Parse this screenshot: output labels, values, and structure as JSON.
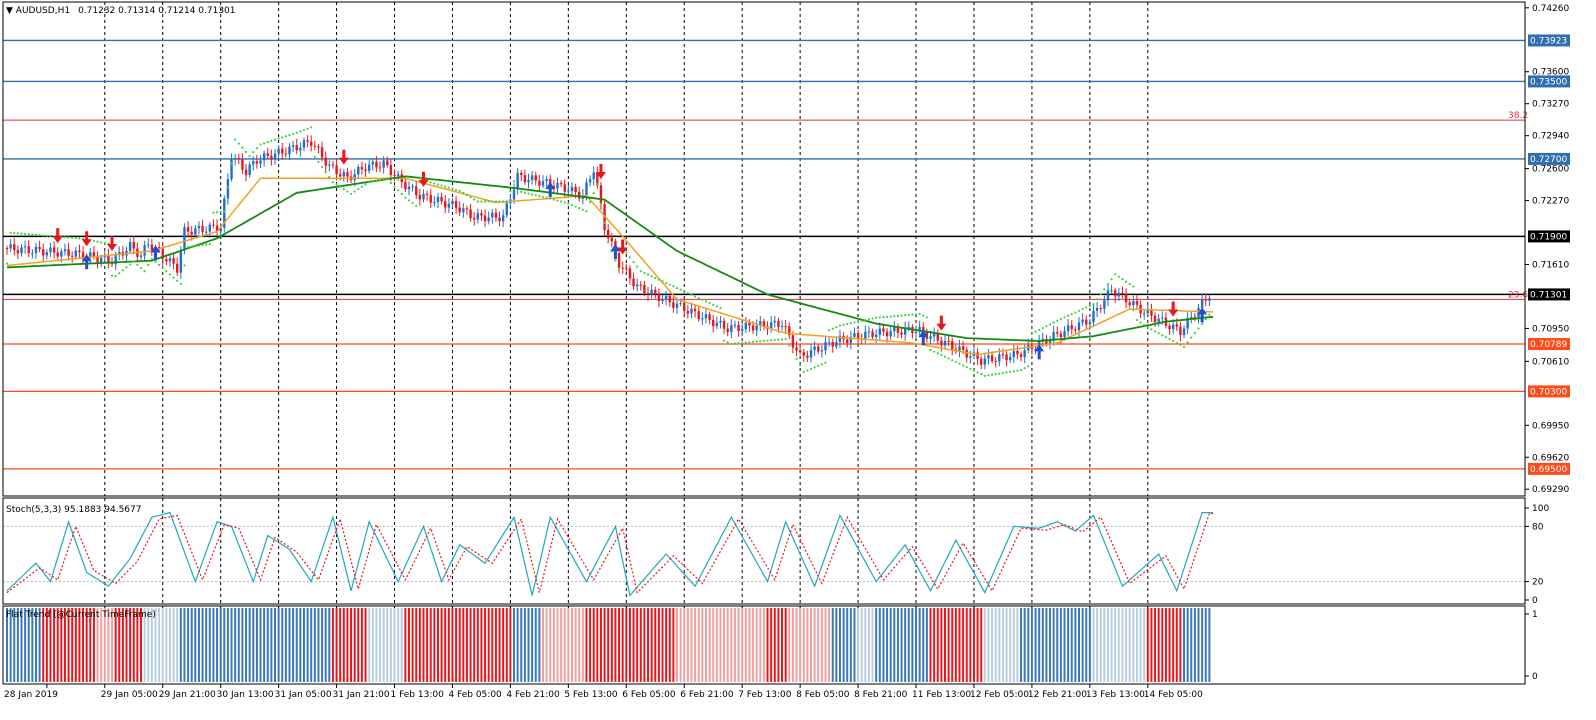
{
  "header": {
    "symbol_tf": "AUDUSD,H1",
    "ohlc": "0.71232 0.71314 0.71214 0.71301"
  },
  "price_axis": {
    "ticks": [
      "0.74260",
      "0.73600",
      "0.73270",
      "0.72940",
      "0.72600",
      "0.72270",
      "0.71610",
      "0.70950",
      "0.70610",
      "0.69950",
      "0.69620",
      "0.69290"
    ],
    "range": [
      0.6922,
      0.7432
    ]
  },
  "levels": [
    {
      "price": 0.73923,
      "label": "0.73923",
      "color": "#2f6fb0"
    },
    {
      "price": 0.735,
      "label": "0.73500",
      "color": "#2f6fb0"
    },
    {
      "price": 0.727,
      "label": "0.72700",
      "color": "#2f6fb0"
    },
    {
      "price": 0.719,
      "label": "0.71900",
      "color": "#000000"
    },
    {
      "price": 0.71301,
      "label": "0.71301",
      "color": "#000000"
    },
    {
      "price": 0.70789,
      "label": "0.70789",
      "color": "#ff4a1a"
    },
    {
      "price": 0.703,
      "label": "0.70300",
      "color": "#ff4a1a"
    },
    {
      "price": 0.695,
      "label": "0.69500",
      "color": "#ff4a1a"
    }
  ],
  "fib": [
    {
      "price": 0.731,
      "label": "38.2"
    },
    {
      "price": 0.7125,
      "label": "23.6"
    }
  ],
  "stoch": {
    "label": "Stoch(5,3,3) 95.1883 94.5677",
    "ticks": [
      "100",
      "80",
      "20",
      "0"
    ]
  },
  "flat_trend": {
    "label": "Flat Trend (@Current TimeFrame)",
    "ticks": [
      "1",
      "0"
    ]
  },
  "time_axis": {
    "labels": [
      "28 Jan 2019",
      "29 Jan 05:00",
      "29 Jan 21:00",
      "30 Jan 13:00",
      "31 Jan 05:00",
      "31 Jan 21:00",
      "1 Feb 13:00",
      "4 Feb 05:00",
      "4 Feb 21:00",
      "5 Feb 13:00",
      "6 Feb 05:00",
      "6 Feb 21:00",
      "7 Feb 13:00",
      "8 Feb 05:00",
      "8 Feb 21:00",
      "11 Feb 13:00",
      "12 Feb 05:00",
      "12 Feb 21:00",
      "13 Feb 13:00",
      "14 Feb 05:00"
    ]
  },
  "chart_data": {
    "type": "candlestick",
    "symbol": "AUDUSD",
    "timeframe": "H1",
    "price_path": [
      [
        0,
        0.7178
      ],
      [
        20,
        0.7172
      ],
      [
        30,
        0.7165
      ],
      [
        35,
        0.718
      ],
      [
        38,
        0.717
      ],
      [
        40,
        0.7183
      ],
      [
        48,
        0.7157
      ],
      [
        50,
        0.7195
      ],
      [
        60,
        0.72
      ],
      [
        63,
        0.7274
      ],
      [
        67,
        0.7257
      ],
      [
        70,
        0.7269
      ],
      [
        80,
        0.7281
      ],
      [
        85,
        0.7288
      ],
      [
        90,
        0.7262
      ],
      [
        95,
        0.725
      ],
      [
        100,
        0.7262
      ],
      [
        105,
        0.7265
      ],
      [
        110,
        0.7246
      ],
      [
        115,
        0.7232
      ],
      [
        125,
        0.7221
      ],
      [
        130,
        0.721
      ],
      [
        138,
        0.721
      ],
      [
        142,
        0.7252
      ],
      [
        150,
        0.7245
      ],
      [
        155,
        0.724
      ],
      [
        160,
        0.7232
      ],
      [
        163,
        0.726
      ],
      [
        166,
        0.72
      ],
      [
        170,
        0.7162
      ],
      [
        175,
        0.7138
      ],
      [
        190,
        0.7112
      ],
      [
        200,
        0.7095
      ],
      [
        215,
        0.71
      ],
      [
        220,
        0.7066
      ],
      [
        230,
        0.7082
      ],
      [
        240,
        0.709
      ],
      [
        252,
        0.7094
      ],
      [
        260,
        0.708
      ],
      [
        270,
        0.7062
      ],
      [
        280,
        0.7068
      ],
      [
        290,
        0.7087
      ],
      [
        300,
        0.7104
      ],
      [
        306,
        0.7135
      ],
      [
        315,
        0.7112
      ],
      [
        320,
        0.7102
      ],
      [
        325,
        0.7092
      ],
      [
        333,
        0.713
      ]
    ],
    "ema_fast_path": [
      [
        0,
        0.716
      ],
      [
        40,
        0.7175
      ],
      [
        58,
        0.7195
      ],
      [
        70,
        0.725
      ],
      [
        88,
        0.725
      ],
      [
        110,
        0.725
      ],
      [
        135,
        0.7225
      ],
      [
        160,
        0.7232
      ],
      [
        170,
        0.719
      ],
      [
        185,
        0.7125
      ],
      [
        215,
        0.709
      ],
      [
        250,
        0.708
      ],
      [
        268,
        0.7068
      ],
      [
        290,
        0.708
      ],
      [
        310,
        0.7115
      ],
      [
        333,
        0.7112
      ]
    ],
    "ema_slow_path": [
      [
        0,
        0.7158
      ],
      [
        40,
        0.7165
      ],
      [
        58,
        0.7188
      ],
      [
        80,
        0.7235
      ],
      [
        110,
        0.7252
      ],
      [
        140,
        0.724
      ],
      [
        165,
        0.7228
      ],
      [
        185,
        0.7175
      ],
      [
        210,
        0.713
      ],
      [
        240,
        0.71
      ],
      [
        265,
        0.7085
      ],
      [
        285,
        0.7082
      ],
      [
        300,
        0.7087
      ],
      [
        320,
        0.7102
      ],
      [
        333,
        0.7107
      ]
    ],
    "stoch_main_path": [
      [
        0,
        10
      ],
      [
        8,
        40
      ],
      [
        12,
        20
      ],
      [
        17,
        85
      ],
      [
        22,
        30
      ],
      [
        28,
        15
      ],
      [
        34,
        45
      ],
      [
        40,
        90
      ],
      [
        45,
        95
      ],
      [
        52,
        20
      ],
      [
        58,
        85
      ],
      [
        62,
        80
      ],
      [
        68,
        20
      ],
      [
        72,
        70
      ],
      [
        78,
        55
      ],
      [
        84,
        20
      ],
      [
        90,
        90
      ],
      [
        95,
        10
      ],
      [
        100,
        85
      ],
      [
        108,
        20
      ],
      [
        115,
        80
      ],
      [
        120,
        20
      ],
      [
        125,
        60
      ],
      [
        132,
        40
      ],
      [
        140,
        90
      ],
      [
        145,
        5
      ],
      [
        150,
        90
      ],
      [
        160,
        20
      ],
      [
        168,
        80
      ],
      [
        172,
        5
      ],
      [
        182,
        50
      ],
      [
        190,
        15
      ],
      [
        200,
        90
      ],
      [
        210,
        20
      ],
      [
        215,
        85
      ],
      [
        223,
        15
      ],
      [
        230,
        92
      ],
      [
        240,
        20
      ],
      [
        248,
        60
      ],
      [
        255,
        10
      ],
      [
        262,
        65
      ],
      [
        270,
        8
      ],
      [
        278,
        80
      ],
      [
        285,
        78
      ],
      [
        290,
        85
      ],
      [
        295,
        75
      ],
      [
        300,
        92
      ],
      [
        308,
        15
      ],
      [
        318,
        50
      ],
      [
        323,
        10
      ],
      [
        330,
        95
      ],
      [
        333,
        95
      ]
    ],
    "stoch_signal_path": [
      [
        0,
        8
      ],
      [
        9,
        35
      ],
      [
        14,
        22
      ],
      [
        19,
        80
      ],
      [
        24,
        32
      ],
      [
        30,
        18
      ],
      [
        36,
        42
      ],
      [
        42,
        88
      ],
      [
        47,
        92
      ],
      [
        54,
        22
      ],
      [
        60,
        82
      ],
      [
        64,
        78
      ],
      [
        70,
        22
      ],
      [
        74,
        68
      ],
      [
        80,
        52
      ],
      [
        86,
        22
      ],
      [
        92,
        88
      ],
      [
        97,
        12
      ],
      [
        102,
        82
      ],
      [
        110,
        22
      ],
      [
        117,
        78
      ],
      [
        122,
        22
      ],
      [
        127,
        58
      ],
      [
        134,
        40
      ],
      [
        142,
        88
      ],
      [
        147,
        8
      ],
      [
        152,
        88
      ],
      [
        162,
        22
      ],
      [
        170,
        78
      ],
      [
        174,
        8
      ],
      [
        184,
        48
      ],
      [
        192,
        18
      ],
      [
        202,
        88
      ],
      [
        212,
        22
      ],
      [
        217,
        82
      ],
      [
        225,
        18
      ],
      [
        232,
        90
      ],
      [
        242,
        22
      ],
      [
        250,
        58
      ],
      [
        257,
        12
      ],
      [
        264,
        62
      ],
      [
        272,
        10
      ],
      [
        280,
        78
      ],
      [
        287,
        76
      ],
      [
        292,
        82
      ],
      [
        297,
        74
      ],
      [
        302,
        90
      ],
      [
        310,
        18
      ],
      [
        320,
        48
      ],
      [
        325,
        12
      ],
      [
        332,
        94
      ],
      [
        333,
        94
      ]
    ],
    "flat_trend_segments": [
      [
        0,
        10,
        "blue"
      ],
      [
        10,
        25,
        "red"
      ],
      [
        25,
        30,
        "lightred"
      ],
      [
        30,
        38,
        "red"
      ],
      [
        38,
        40,
        "lightblue"
      ],
      [
        40,
        48,
        "lightblue"
      ],
      [
        48,
        90,
        "blue"
      ],
      [
        90,
        100,
        "red"
      ],
      [
        100,
        110,
        "lightblue"
      ],
      [
        110,
        140,
        "red"
      ],
      [
        140,
        148,
        "blue"
      ],
      [
        148,
        160,
        "lightred"
      ],
      [
        160,
        168,
        "red"
      ],
      [
        168,
        185,
        "red"
      ],
      [
        185,
        210,
        "lightred"
      ],
      [
        210,
        216,
        "red"
      ],
      [
        216,
        228,
        "lightred"
      ],
      [
        228,
        235,
        "blue"
      ],
      [
        235,
        240,
        "lightblue"
      ],
      [
        240,
        255,
        "blue"
      ],
      [
        255,
        270,
        "red"
      ],
      [
        270,
        280,
        "lightblue"
      ],
      [
        280,
        300,
        "blue"
      ],
      [
        300,
        315,
        "lightblue"
      ],
      [
        315,
        325,
        "red"
      ],
      [
        325,
        333,
        "blue"
      ]
    ],
    "arrows": [
      [
        14,
        "down"
      ],
      [
        22,
        "down"
      ],
      [
        22,
        "up"
      ],
      [
        29,
        "down"
      ],
      [
        41,
        "up"
      ],
      [
        93,
        "down"
      ],
      [
        115,
        "down"
      ],
      [
        150,
        "up"
      ],
      [
        164,
        "down"
      ],
      [
        168,
        "up"
      ],
      [
        170,
        "down"
      ],
      [
        253,
        "up"
      ],
      [
        258,
        "down"
      ],
      [
        285,
        "up"
      ],
      [
        322,
        "down"
      ],
      [
        330,
        "up"
      ]
    ]
  }
}
